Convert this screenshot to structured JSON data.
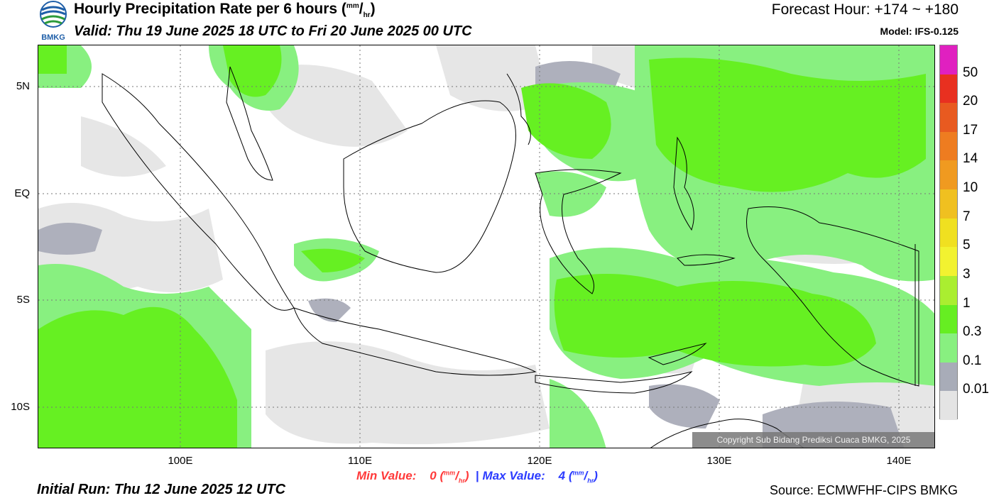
{
  "header": {
    "logo_text": "BMKG",
    "title_main": "Hourly Precipitation Rate per 6 hours",
    "title_unit_num": "mm",
    "title_unit_den": "hr",
    "valid": "Valid: Thu 19 June 2025 18 UTC to Fri 20 June 2025 00 UTC",
    "forecast_hour": "Forecast Hour: +174 ~ +180",
    "model": "Model: IFS-0.125"
  },
  "map": {
    "lat_labels": [
      "5N",
      "EQ",
      "5S",
      "10S"
    ],
    "lon_labels": [
      "100E",
      "110E",
      "120E",
      "130E",
      "140E"
    ],
    "copyright": "Copyright Sub Bidang Prediksi Cuaca BMKG, 2025"
  },
  "colorbar": {
    "labels": [
      "50",
      "20",
      "17",
      "14",
      "10",
      "7",
      "5",
      "3",
      "1",
      "0.3",
      "0.1",
      "0.01"
    ],
    "colors": [
      "#e020c0",
      "#e83020",
      "#e85a20",
      "#ee7c20",
      "#f09a20",
      "#f0c020",
      "#f0e020",
      "#f2f230",
      "#aaee30",
      "#66ee22",
      "#88f080",
      "#a8acb8",
      "#e4e4e4"
    ]
  },
  "footer": {
    "min_label": "Min Value:",
    "min_value": "0",
    "max_label": "Max Value:",
    "max_value": "4",
    "unit_num": "mm",
    "unit_den": "hr",
    "separator": "|",
    "initial_run": "Initial Run: Thu 12 June 2025 12 UTC",
    "source": "Source: ECMWFHF-CIPS BMKG"
  }
}
